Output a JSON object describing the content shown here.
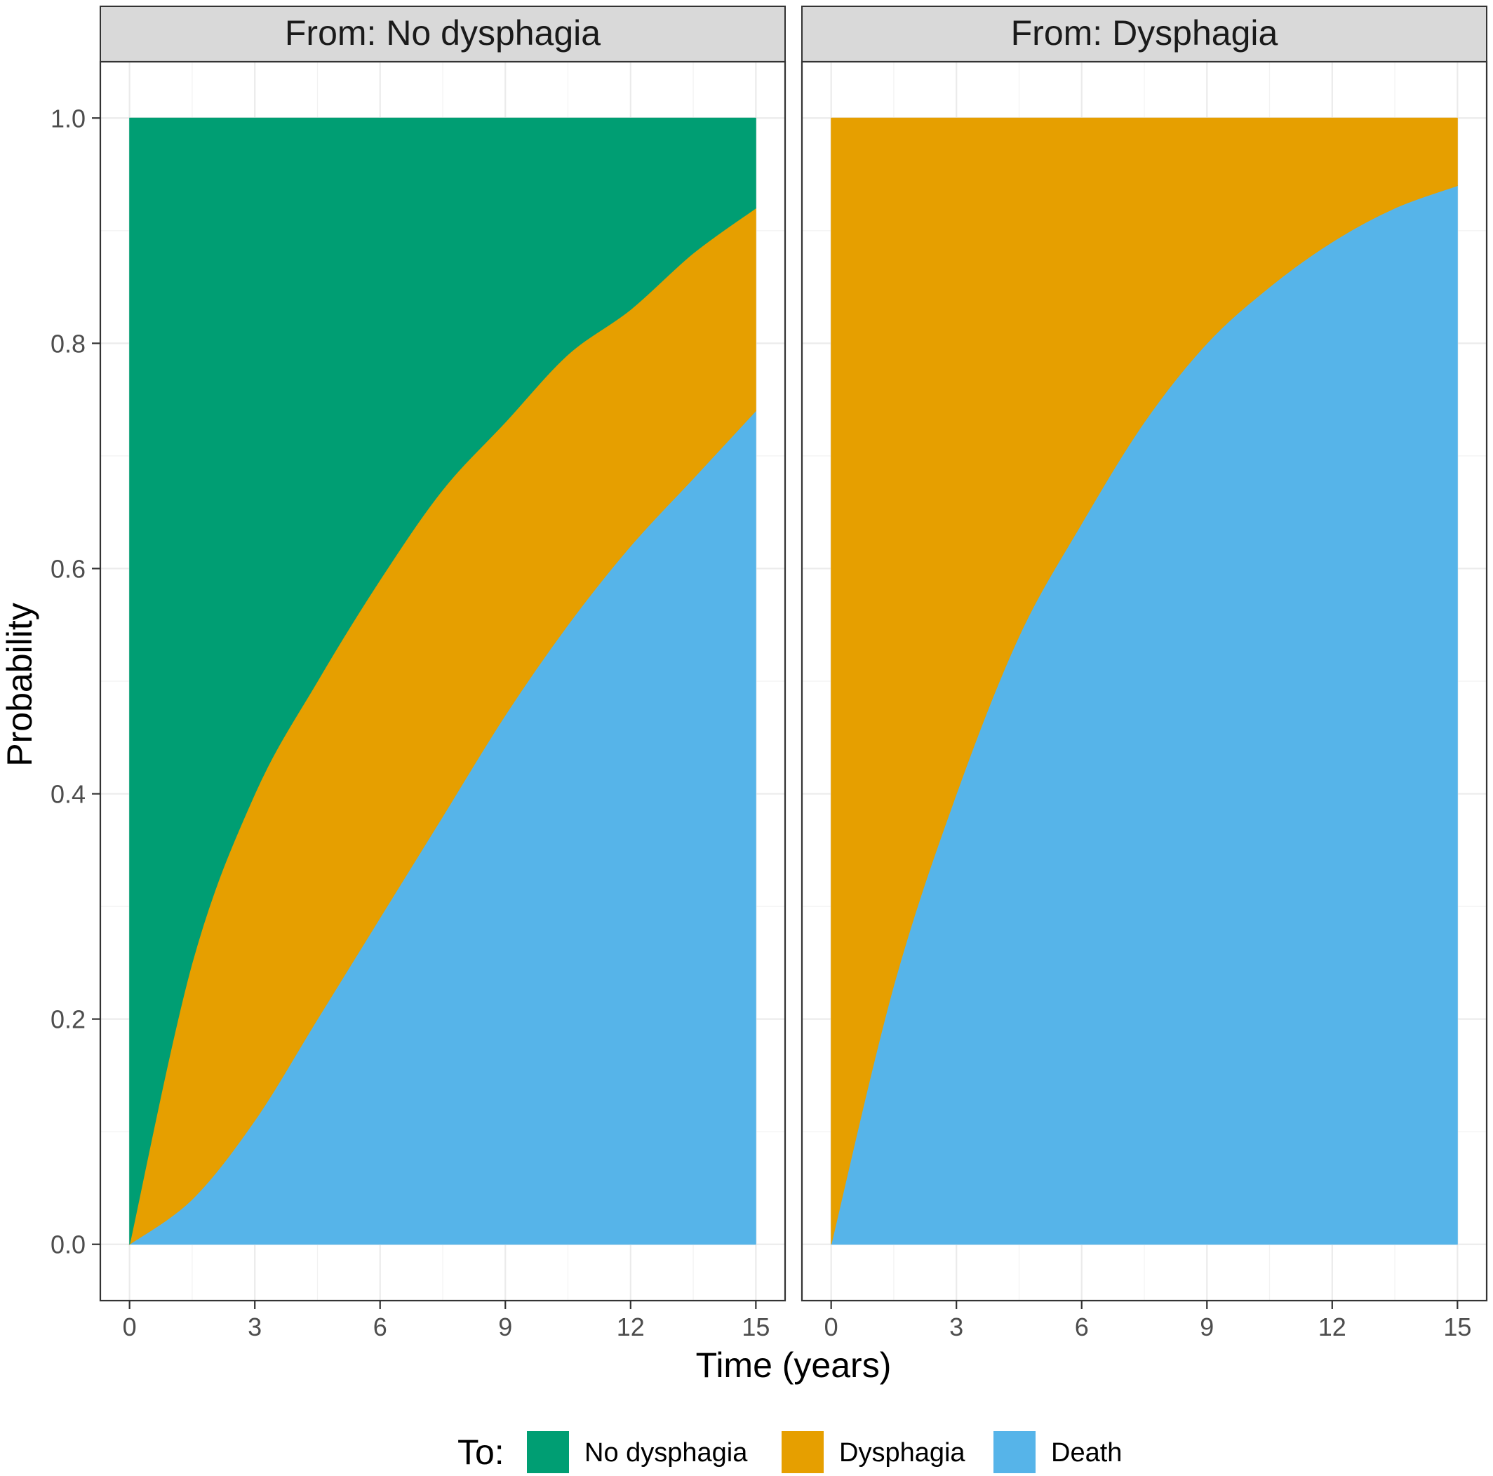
{
  "chart_data": {
    "type": "area",
    "stacked": true,
    "xlabel": "Time (years)",
    "ylabel": "Probability",
    "xlim": [
      -0.7,
      15.7
    ],
    "ylim": [
      -0.05,
      1.05
    ],
    "x_ticks": [
      0,
      3,
      6,
      9,
      12,
      15
    ],
    "x_tick_labels": [
      "0",
      "3",
      "6",
      "9",
      "12",
      "15"
    ],
    "y_ticks": [
      0.0,
      0.2,
      0.4,
      0.6,
      0.8,
      1.0
    ],
    "y_tick_labels": [
      "0.0",
      "0.2",
      "0.4",
      "0.6",
      "0.8",
      "1.0"
    ],
    "grid": true,
    "legend": {
      "title": "To:",
      "position": "bottom",
      "entries": [
        {
          "name": "No dysphagia",
          "color": "#009E73"
        },
        {
          "name": "Dysphagia",
          "color": "#E69F00"
        },
        {
          "name": "Death",
          "color": "#56B4E9"
        }
      ]
    },
    "panels": [
      {
        "title": "From: No dysphagia",
        "x": [
          0,
          1.5,
          3,
          4.5,
          6,
          7.5,
          9,
          10.5,
          12,
          13.5,
          15
        ],
        "series": [
          {
            "name": "Death",
            "color": "#56B4E9",
            "values": [
              0.0,
              0.04,
              0.11,
              0.2,
              0.29,
              0.38,
              0.47,
              0.55,
              0.62,
              0.68,
              0.74
            ]
          },
          {
            "name": "Dysphagia",
            "color": "#E69F00",
            "values": [
              0.0,
              0.21,
              0.29,
              0.3,
              0.3,
              0.29,
              0.26,
              0.24,
              0.21,
              0.2,
              0.18
            ]
          },
          {
            "name": "No dysphagia",
            "color": "#009E73",
            "values": [
              1.0,
              0.75,
              0.6,
              0.5,
              0.41,
              0.33,
              0.27,
              0.21,
              0.17,
              0.12,
              0.08
            ]
          }
        ]
      },
      {
        "title": "From: Dysphagia",
        "x": [
          0,
          1.5,
          3,
          4.5,
          6,
          7.5,
          9,
          10.5,
          12,
          13.5,
          15
        ],
        "series": [
          {
            "name": "Death",
            "color": "#56B4E9",
            "values": [
              0.0,
              0.23,
              0.4,
              0.54,
              0.64,
              0.73,
              0.8,
              0.85,
              0.89,
              0.92,
              0.94
            ]
          },
          {
            "name": "Dysphagia",
            "color": "#E69F00",
            "values": [
              1.0,
              0.77,
              0.6,
              0.46,
              0.36,
              0.27,
              0.2,
              0.15,
              0.11,
              0.08,
              0.06
            ]
          }
        ]
      }
    ]
  }
}
